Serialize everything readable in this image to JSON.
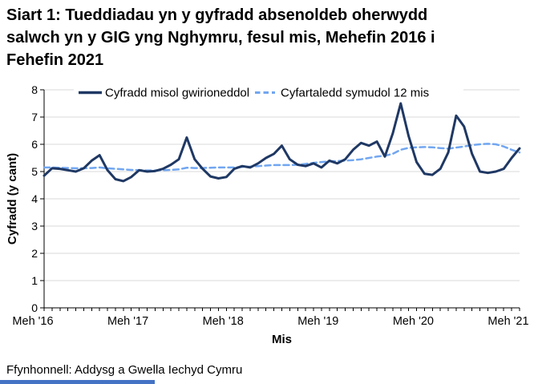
{
  "page": {
    "title_lines": [
      "Siart 1: Tueddiadau yn y gyfradd absenoldeb oherwydd",
      "salwch yn y GIG yng Nghymru, fesul mis, Mehefin 2016 i",
      "Fehefin 2021"
    ],
    "source_note": "Ffynhonnell: Addysg a Gwella Iechyd Cymru"
  },
  "colors": {
    "actual_line": "#1F3864",
    "moving_avg_line": "#71A6F0",
    "gridline": "#D9D9D9",
    "axis": "#000000",
    "text": "#000000",
    "clipped_bottom_bar": "#4472C4"
  },
  "chart_data": {
    "type": "line",
    "title": "Siart 1: Tueddiadau yn y gyfradd absenoldeb oherwydd salwch yn y GIG yng Nghymru, fesul mis, Mehefin 2016 i Fehefin 2021",
    "xlabel": "Mis",
    "ylabel": "Cyfradd (y cant)",
    "ylim": [
      0,
      8
    ],
    "y_ticks": [
      0,
      1,
      2,
      3,
      4,
      5,
      6,
      7,
      8
    ],
    "x_tick_labels": [
      "Meh '16",
      "Meh '17",
      "Meh '18",
      "Meh '19",
      "Meh '20",
      "Meh '21"
    ],
    "x_tick_positions": [
      0,
      12,
      24,
      36,
      48,
      60
    ],
    "grid": "horizontal",
    "legend_position": "top",
    "months": [
      "2016-06",
      "2016-07",
      "2016-08",
      "2016-09",
      "2016-10",
      "2016-11",
      "2016-12",
      "2017-01",
      "2017-02",
      "2017-03",
      "2017-04",
      "2017-05",
      "2017-06",
      "2017-07",
      "2017-08",
      "2017-09",
      "2017-10",
      "2017-11",
      "2017-12",
      "2018-01",
      "2018-02",
      "2018-03",
      "2018-04",
      "2018-05",
      "2018-06",
      "2018-07",
      "2018-08",
      "2018-09",
      "2018-10",
      "2018-11",
      "2018-12",
      "2019-01",
      "2019-02",
      "2019-03",
      "2019-04",
      "2019-05",
      "2019-06",
      "2019-07",
      "2019-08",
      "2019-09",
      "2019-10",
      "2019-11",
      "2019-12",
      "2020-01",
      "2020-02",
      "2020-03",
      "2020-04",
      "2020-05",
      "2020-06",
      "2020-07",
      "2020-08",
      "2020-09",
      "2020-10",
      "2020-11",
      "2020-12",
      "2021-01",
      "2021-02",
      "2021-03",
      "2021-04",
      "2021-05",
      "2021-06"
    ],
    "series": [
      {
        "name": "Cyfradd misol gwirioneddol",
        "style": "solid",
        "color": "#1F3864",
        "values": [
          4.85,
          5.12,
          5.1,
          5.05,
          5.0,
          5.12,
          5.4,
          5.6,
          5.05,
          4.72,
          4.65,
          4.8,
          5.05,
          5.0,
          5.02,
          5.1,
          5.25,
          5.45,
          6.25,
          5.45,
          5.1,
          4.82,
          4.75,
          4.8,
          5.1,
          5.2,
          5.15,
          5.3,
          5.5,
          5.65,
          5.95,
          5.45,
          5.25,
          5.2,
          5.3,
          5.15,
          5.4,
          5.3,
          5.45,
          5.8,
          6.05,
          5.95,
          6.1,
          5.55,
          6.4,
          7.5,
          6.3,
          5.35,
          4.92,
          4.88,
          5.1,
          5.7,
          7.05,
          6.65,
          5.65,
          5.0,
          4.95,
          5.0,
          5.1,
          5.5,
          5.85
        ]
      },
      {
        "name": "Cyfartaledd symudol 12 mis",
        "style": "dashed",
        "color": "#71A6F0",
        "values": [
          5.15,
          5.15,
          5.14,
          5.13,
          5.12,
          5.12,
          5.13,
          5.15,
          5.12,
          5.1,
          5.08,
          5.06,
          5.05,
          5.04,
          5.04,
          5.05,
          5.06,
          5.08,
          5.14,
          5.13,
          5.13,
          5.14,
          5.15,
          5.15,
          5.15,
          5.17,
          5.18,
          5.2,
          5.22,
          5.24,
          5.24,
          5.24,
          5.25,
          5.28,
          5.32,
          5.35,
          5.37,
          5.39,
          5.4,
          5.42,
          5.45,
          5.5,
          5.55,
          5.58,
          5.65,
          5.8,
          5.87,
          5.89,
          5.9,
          5.89,
          5.86,
          5.84,
          5.88,
          5.92,
          5.97,
          6.0,
          6.02,
          6.0,
          5.92,
          5.8,
          5.7
        ]
      }
    ]
  }
}
